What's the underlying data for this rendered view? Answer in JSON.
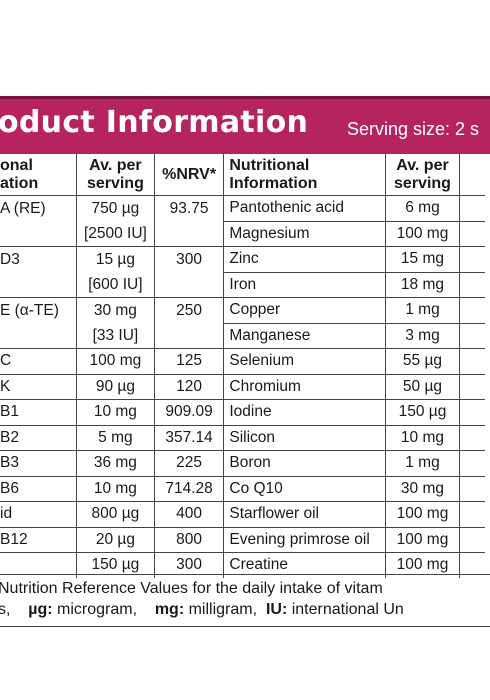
{
  "header": {
    "title": "oduct Information",
    "serving": "Serving size: 2 s"
  },
  "columns": {
    "info_left": "onal\nation",
    "av_left": "Av. per\nserving",
    "nrv": "%NRV*",
    "info_right": "Nutritional\nInformation",
    "av_right": "Av. per\nserving"
  },
  "rows": [
    {
      "left": "A (RE)",
      "lav": "750  µg",
      "nrv": "93.75",
      "right": "Pantothenic acid",
      "rav": "6   mg"
    },
    {
      "left": "",
      "lav": "[2500 IU]",
      "nrv": "",
      "right": "Magnesium",
      "rav": "100  mg"
    },
    {
      "left": "D3",
      "lav": "15  µg",
      "nrv": "300",
      "right": "Zinc",
      "rav": "15   mg"
    },
    {
      "left": "",
      "lav": "[600 IU]",
      "nrv": "",
      "right": "Iron",
      "rav": "18   mg"
    },
    {
      "left": "E (α-TE)",
      "lav": "30  mg",
      "nrv": "250",
      "right": "Copper",
      "rav": "1   mg"
    },
    {
      "left": "",
      "lav": "[33 IU]",
      "nrv": "",
      "right": "Manganese",
      "rav": "3   mg"
    },
    {
      "left": "C",
      "lav": "100 mg",
      "nrv": "125",
      "right": "Selenium",
      "rav": "55   µg"
    },
    {
      "left": "K",
      "lav": "90  µg",
      "nrv": "120",
      "right": "Chromium",
      "rav": "50   µg"
    },
    {
      "left": "B1",
      "lav": "10  mg",
      "nrv": "909.09",
      "right": "Iodine",
      "rav": "150  µg"
    },
    {
      "left": "B2",
      "lav": "5  mg",
      "nrv": "357.14",
      "right": "Silicon",
      "rav": "10   mg"
    },
    {
      "left": "B3",
      "lav": "36  mg",
      "nrv": "225",
      "right": "Boron",
      "rav": "1   mg"
    },
    {
      "left": "B6",
      "lav": "10  mg",
      "nrv": "714.28",
      "right": "Co Q10",
      "rav": "30   mg"
    },
    {
      "left": "id",
      "lav": "800  µg",
      "nrv": "400",
      "right": "Starflower oil",
      "rav": "100  mg"
    },
    {
      "left": "B12",
      "lav": "20  µg",
      "nrv": "800",
      "right": "Evening primrose oil",
      "rav": "100  mg"
    },
    {
      "left": "",
      "lav": "150  µg",
      "nrv": "300",
      "right": "Creatine",
      "rav": "100  mg"
    }
  ],
  "footer": {
    "line1": "Nutrition Reference Values for the daily intake of vitam",
    "line2_prefix": "s,",
    "ug_label": "µg:",
    "ug_text": "microgram,",
    "mg_label": "mg:",
    "mg_text": "milligram,",
    "iu_label": "IU:",
    "iu_text": "international Un"
  }
}
